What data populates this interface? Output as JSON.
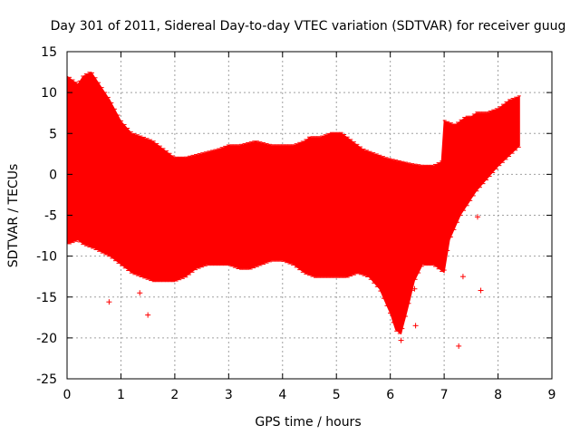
{
  "chart_data": {
    "type": "scatter",
    "title": "Day 301 of 2011, Sidereal Day-to-day VTEC variation (SDTVAR) for receiver guug",
    "xlabel": "GPS time / hours",
    "ylabel": "SDTVAR / TECUs",
    "xlim": [
      0,
      9
    ],
    "ylim": [
      -25,
      15
    ],
    "x_ticks": [
      0,
      1,
      2,
      3,
      4,
      5,
      6,
      7,
      8,
      9
    ],
    "y_ticks": [
      -25,
      -20,
      -15,
      -10,
      -5,
      0,
      5,
      10,
      15
    ],
    "grid": true,
    "series_color": "#ff0000",
    "series": [
      {
        "name": "SDTVAR",
        "style": "points with error bars",
        "upper_envelope": [
          [
            0.0,
            12.0
          ],
          [
            0.1,
            11.5
          ],
          [
            0.2,
            11.0
          ],
          [
            0.3,
            12.0
          ],
          [
            0.45,
            12.5
          ],
          [
            0.6,
            11.0
          ],
          [
            0.8,
            9.0
          ],
          [
            1.0,
            6.5
          ],
          [
            1.2,
            5.0
          ],
          [
            1.4,
            4.5
          ],
          [
            1.6,
            4.0
          ],
          [
            1.8,
            3.0
          ],
          [
            2.0,
            2.0
          ],
          [
            2.2,
            2.0
          ],
          [
            2.5,
            2.5
          ],
          [
            2.8,
            3.0
          ],
          [
            3.0,
            3.5
          ],
          [
            3.2,
            3.5
          ],
          [
            3.5,
            4.0
          ],
          [
            3.8,
            3.5
          ],
          [
            4.0,
            3.5
          ],
          [
            4.2,
            3.5
          ],
          [
            4.4,
            4.0
          ],
          [
            4.5,
            4.5
          ],
          [
            4.7,
            4.5
          ],
          [
            4.9,
            5.0
          ],
          [
            5.1,
            5.0
          ],
          [
            5.3,
            4.0
          ],
          [
            5.5,
            3.0
          ],
          [
            5.7,
            2.5
          ],
          [
            5.9,
            2.0
          ],
          [
            6.0,
            1.8
          ],
          [
            6.2,
            1.5
          ],
          [
            6.4,
            1.2
          ],
          [
            6.6,
            1.0
          ],
          [
            6.8,
            1.0
          ],
          [
            6.95,
            1.5
          ],
          [
            7.0,
            6.5
          ],
          [
            7.2,
            6.0
          ],
          [
            7.4,
            7.0
          ],
          [
            7.5,
            7.0
          ],
          [
            7.6,
            7.5
          ],
          [
            7.8,
            7.5
          ],
          [
            8.0,
            8.0
          ],
          [
            8.2,
            9.0
          ],
          [
            8.4,
            9.5
          ]
        ],
        "lower_envelope": [
          [
            0.0,
            -8.5
          ],
          [
            0.2,
            -8.0
          ],
          [
            0.3,
            -8.5
          ],
          [
            0.5,
            -9.0
          ],
          [
            0.8,
            -10.0
          ],
          [
            1.0,
            -11.0
          ],
          [
            1.2,
            -12.0
          ],
          [
            1.4,
            -12.5
          ],
          [
            1.6,
            -13.0
          ],
          [
            1.8,
            -13.0
          ],
          [
            2.0,
            -13.0
          ],
          [
            2.2,
            -12.5
          ],
          [
            2.4,
            -11.5
          ],
          [
            2.6,
            -11.0
          ],
          [
            2.8,
            -11.0
          ],
          [
            3.0,
            -11.0
          ],
          [
            3.2,
            -11.5
          ],
          [
            3.4,
            -11.5
          ],
          [
            3.6,
            -11.0
          ],
          [
            3.8,
            -10.5
          ],
          [
            4.0,
            -10.5
          ],
          [
            4.2,
            -11.0
          ],
          [
            4.4,
            -12.0
          ],
          [
            4.6,
            -12.5
          ],
          [
            4.8,
            -12.5
          ],
          [
            5.0,
            -12.5
          ],
          [
            5.2,
            -12.5
          ],
          [
            5.4,
            -12.0
          ],
          [
            5.6,
            -12.5
          ],
          [
            5.8,
            -14.0
          ],
          [
            6.0,
            -17.0
          ],
          [
            6.1,
            -19.0
          ],
          [
            6.2,
            -19.5
          ],
          [
            6.3,
            -17.0
          ],
          [
            6.45,
            -13.0
          ],
          [
            6.6,
            -11.0
          ],
          [
            6.8,
            -11.0
          ],
          [
            7.0,
            -12.0
          ],
          [
            7.1,
            -8.0
          ],
          [
            7.3,
            -5.0
          ],
          [
            7.6,
            -2.0
          ],
          [
            8.0,
            1.0
          ],
          [
            8.4,
            3.5
          ]
        ],
        "outlier_points": [
          [
            0.78,
            -15.6
          ],
          [
            1.35,
            -14.5
          ],
          [
            1.5,
            -17.2
          ],
          [
            6.05,
            -12.0
          ],
          [
            6.2,
            -20.3
          ],
          [
            6.45,
            -14.0
          ],
          [
            6.47,
            -18.5
          ],
          [
            7.27,
            -21.0
          ],
          [
            7.35,
            -12.5
          ],
          [
            7.62,
            -5.2
          ],
          [
            7.68,
            -14.2
          ]
        ]
      }
    ]
  }
}
